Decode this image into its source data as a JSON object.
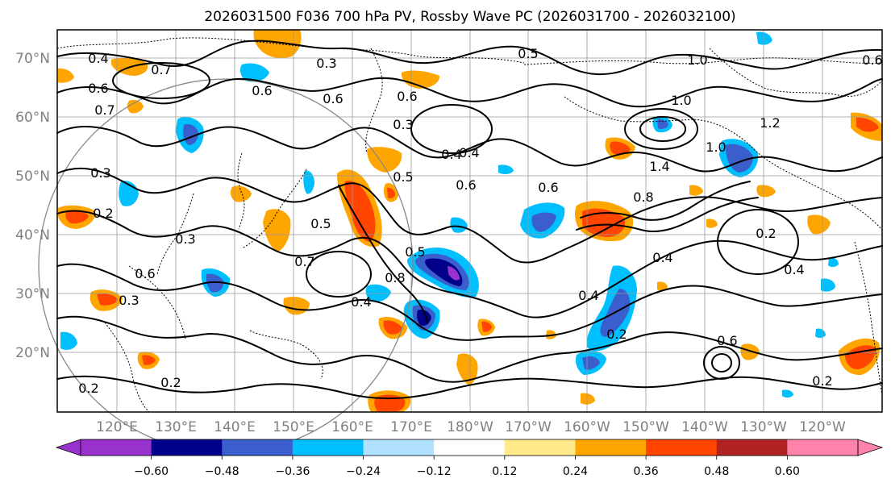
{
  "title": "2026031500 F036 700 hPa PV, Rossby Wave PC (2026031700 - 2026032100)",
  "map": {
    "lat_labels": [
      "70°N",
      "60°N",
      "50°N",
      "40°N",
      "30°N",
      "20°N"
    ],
    "lon_labels": [
      "120°E",
      "130°E",
      "140°E",
      "150°E",
      "160°E",
      "170°E",
      "180°W",
      "170°W",
      "160°W",
      "150°W",
      "140°W",
      "130°W",
      "120°W"
    ],
    "contour_labels": [
      "0.4",
      "0.7",
      "0.3",
      "0.5",
      "0.6",
      "0.6",
      "0.3",
      "0.4",
      "0.6",
      "0.5",
      "0.3",
      "0.2",
      "0.7",
      "0.6",
      "0.4",
      "0.3",
      "1.0",
      "1.0",
      "1.2",
      "1.4",
      "0.8",
      "0.4",
      "0.2",
      "0.6",
      "0.2",
      "0.5",
      "0.3",
      "0.2",
      "0.4",
      "0.2",
      "0.6",
      "0.7",
      "0.6",
      "0.5",
      "0.4",
      "0.6",
      "0.2",
      "0.8",
      "0.4",
      "1.0",
      "0.6"
    ],
    "highlight_colors": {
      "blue_strong": "#00008b",
      "blue_medium": "#3a5fcd",
      "blue": "#00bfff",
      "blue_light": "#b0e2ff",
      "yellow": "#ffe98a",
      "orange": "#ffa500",
      "red_orange": "#ff4500",
      "dark_red": "#b22222",
      "purple": "#9932cc"
    }
  },
  "colorbar": {
    "ticks": [
      "−0.60",
      "−0.48",
      "−0.36",
      "−0.24",
      "−0.12",
      "0.12",
      "0.24",
      "0.36",
      "0.48",
      "0.60"
    ],
    "colors": [
      "#9932cc",
      "#00008b",
      "#3a5fcd",
      "#00bfff",
      "#b0e2ff",
      "#ffffff",
      "#ffe98a",
      "#ffa500",
      "#ff4500",
      "#b22222",
      "#ff82ab"
    ]
  }
}
